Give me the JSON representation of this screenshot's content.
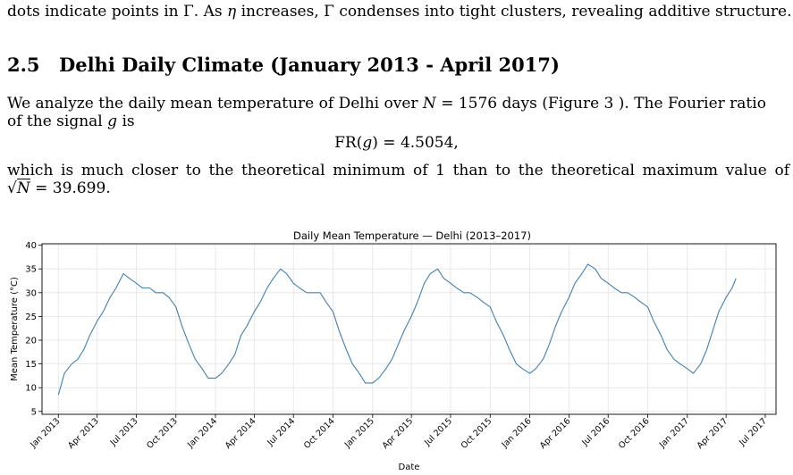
{
  "intro_line": {
    "prefix": "dots indicate points in Γ. As ",
    "eta": "η",
    "middle": " increases, ",
    "gamma": "Γ",
    "suffix": " condenses into tight clusters, revealing additive structure."
  },
  "section": {
    "number": "2.5",
    "title": "Delhi Daily Climate (January 2013 - April 2017)"
  },
  "paragraph1": {
    "text_a": "We analyze the daily mean temperature of Delhi over ",
    "n_var": "N",
    "n_eq": " = 1576 days (Figure 3 ).  The Fourier ratio",
    "text_b": "of the signal ",
    "g_var": "g",
    "text_c": " is"
  },
  "equation": {
    "lhs": "FR(",
    "var": "g",
    "rhs": ") = 4.5054,"
  },
  "paragraph2": {
    "row1": "which is much closer to the theoretical minimum of 1 than to the theoretical maximum value of",
    "sqrt_sym": "√",
    "sqrt_var": "N",
    "row2_tail": " = 39.699."
  },
  "chart_data": {
    "type": "line",
    "title": "Daily Mean Temperature — Delhi (2013–2017)",
    "xlabel": "Date",
    "ylabel": "Mean Temperature (°C)",
    "ylim": [
      4.4,
      40.3
    ],
    "xlim": [
      "2012-11-24",
      "2017-07-26"
    ],
    "y_ticks": [
      5,
      10,
      15,
      20,
      25,
      30,
      35,
      40
    ],
    "x_ticks": [
      "2013-01-01",
      "2013-04-01",
      "2013-07-01",
      "2013-10-01",
      "2014-01-01",
      "2014-04-01",
      "2014-07-01",
      "2014-10-01",
      "2015-01-01",
      "2015-04-01",
      "2015-07-01",
      "2015-10-01",
      "2016-01-01",
      "2016-04-01",
      "2016-07-01",
      "2016-10-01",
      "2017-01-01",
      "2017-04-01",
      "2017-07-01"
    ],
    "x_tick_labels": [
      "Jan 2013",
      "Apr 2013",
      "Jul 2013",
      "Oct 2013",
      "Jan 2014",
      "Apr 2014",
      "Jul 2014",
      "Oct 2014",
      "Jan 2015",
      "Apr 2015",
      "Jul 2015",
      "Oct 2015",
      "Jan 2016",
      "Apr 2016",
      "Jul 2016",
      "Oct 2016",
      "Jan 2017",
      "Apr 2017",
      "Jul 2017"
    ],
    "grid": true,
    "line_color": "#3f7fb3",
    "series": [
      {
        "x": [
          "2013-01-01",
          "2013-01-15",
          "2013-02-01",
          "2013-02-15",
          "2013-03-01",
          "2013-03-15",
          "2013-04-01",
          "2013-04-15",
          "2013-05-01",
          "2013-05-15",
          "2013-06-01",
          "2013-06-15",
          "2013-07-01",
          "2013-07-15",
          "2013-08-01",
          "2013-08-15",
          "2013-09-01",
          "2013-09-15",
          "2013-10-01",
          "2013-10-15",
          "2013-11-01",
          "2013-11-15",
          "2013-12-01",
          "2013-12-15",
          "2014-01-01",
          "2014-01-15",
          "2014-02-01",
          "2014-02-15",
          "2014-03-01",
          "2014-03-15",
          "2014-04-01",
          "2014-04-15",
          "2014-05-01",
          "2014-05-15",
          "2014-06-01",
          "2014-06-15",
          "2014-07-01",
          "2014-07-15",
          "2014-08-01",
          "2014-08-15",
          "2014-09-01",
          "2014-09-15",
          "2014-10-01",
          "2014-10-15",
          "2014-11-01",
          "2014-11-15",
          "2014-12-01",
          "2014-12-15",
          "2015-01-01",
          "2015-01-15",
          "2015-02-01",
          "2015-02-15",
          "2015-03-01",
          "2015-03-15",
          "2015-04-01",
          "2015-04-15",
          "2015-05-01",
          "2015-05-15",
          "2015-06-01",
          "2015-06-15",
          "2015-07-01",
          "2015-07-15",
          "2015-08-01",
          "2015-08-15",
          "2015-09-01",
          "2015-09-15",
          "2015-10-01",
          "2015-10-15",
          "2015-11-01",
          "2015-11-15",
          "2015-12-01",
          "2015-12-15",
          "2016-01-01",
          "2016-01-15",
          "2016-02-01",
          "2016-02-15",
          "2016-03-01",
          "2016-03-15",
          "2016-04-01",
          "2016-04-15",
          "2016-05-01",
          "2016-05-15",
          "2016-06-01",
          "2016-06-15",
          "2016-07-01",
          "2016-07-15",
          "2016-08-01",
          "2016-08-15",
          "2016-09-01",
          "2016-09-15",
          "2016-10-01",
          "2016-10-15",
          "2016-11-01",
          "2016-11-15",
          "2016-12-01",
          "2016-12-15",
          "2017-01-01",
          "2017-01-15",
          "2017-02-01",
          "2017-02-15",
          "2017-03-01",
          "2017-03-15",
          "2017-04-01",
          "2017-04-15",
          "2017-04-24"
        ],
        "y": [
          8.5,
          13,
          15,
          16,
          18,
          21,
          24,
          26,
          29,
          31,
          34,
          33,
          32,
          31,
          31,
          30,
          30,
          29,
          27,
          23,
          19,
          16,
          14,
          12,
          12,
          13,
          15,
          17,
          21,
          23,
          26,
          28,
          31,
          33,
          35,
          34,
          32,
          31,
          30,
          30,
          30,
          28,
          26,
          22,
          18,
          15,
          13,
          11,
          11,
          12,
          14,
          16,
          19,
          22,
          25,
          28,
          32,
          34,
          35,
          33,
          32,
          31,
          30,
          30,
          29,
          28,
          27,
          24,
          21,
          18,
          15,
          14,
          13,
          14,
          16,
          19,
          23,
          26,
          29,
          32,
          34,
          36,
          35,
          33,
          32,
          31,
          30,
          30,
          29,
          28,
          27,
          24,
          21,
          18,
          16,
          15,
          14,
          13,
          15,
          18,
          22,
          26,
          29,
          31,
          33
        ]
      }
    ]
  }
}
